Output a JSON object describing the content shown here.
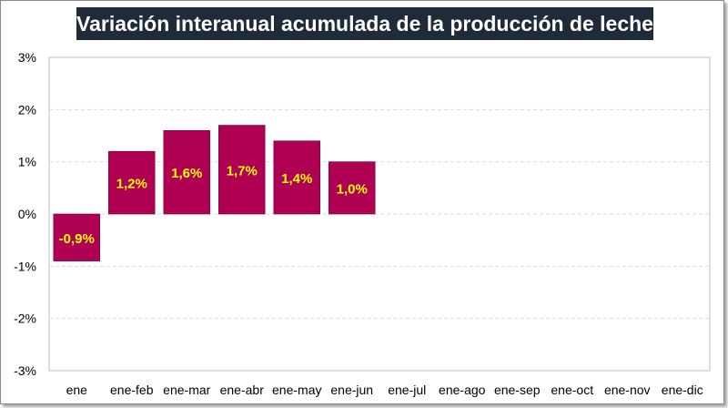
{
  "chart_data": {
    "type": "bar",
    "title": "Variación interanual acumulada de la producción de leche",
    "categories": [
      "ene",
      "ene-feb",
      "ene-mar",
      "ene-abr",
      "ene-may",
      "ene-jun",
      "ene-jul",
      "ene-ago",
      "ene-sep",
      "ene-oct",
      "ene-nov",
      "ene-dic"
    ],
    "values": [
      -0.9,
      1.2,
      1.6,
      1.7,
      1.4,
      1.0,
      null,
      null,
      null,
      null,
      null,
      null
    ],
    "data_labels": [
      "-0,9%",
      "1,2%",
      "1,6%",
      "1,7%",
      "1,4%",
      "1,0%",
      "",
      "",
      "",
      "",
      "",
      ""
    ],
    "y_ticks": [
      3,
      2,
      1,
      0,
      -1,
      -2,
      -3
    ],
    "y_tick_labels": [
      "3%",
      "2%",
      "1%",
      "0%",
      "-1%",
      "-2%",
      "-3%"
    ],
    "ylim": [
      -3,
      3
    ],
    "xlabel": "",
    "ylabel": "",
    "grid": true,
    "legend": "none",
    "colors": {
      "bar": "#b00054",
      "label_text": "#ffff00",
      "title_bg": "#1f2b38",
      "title_text": "#ffffff",
      "grid": "#d9d9d9"
    }
  }
}
